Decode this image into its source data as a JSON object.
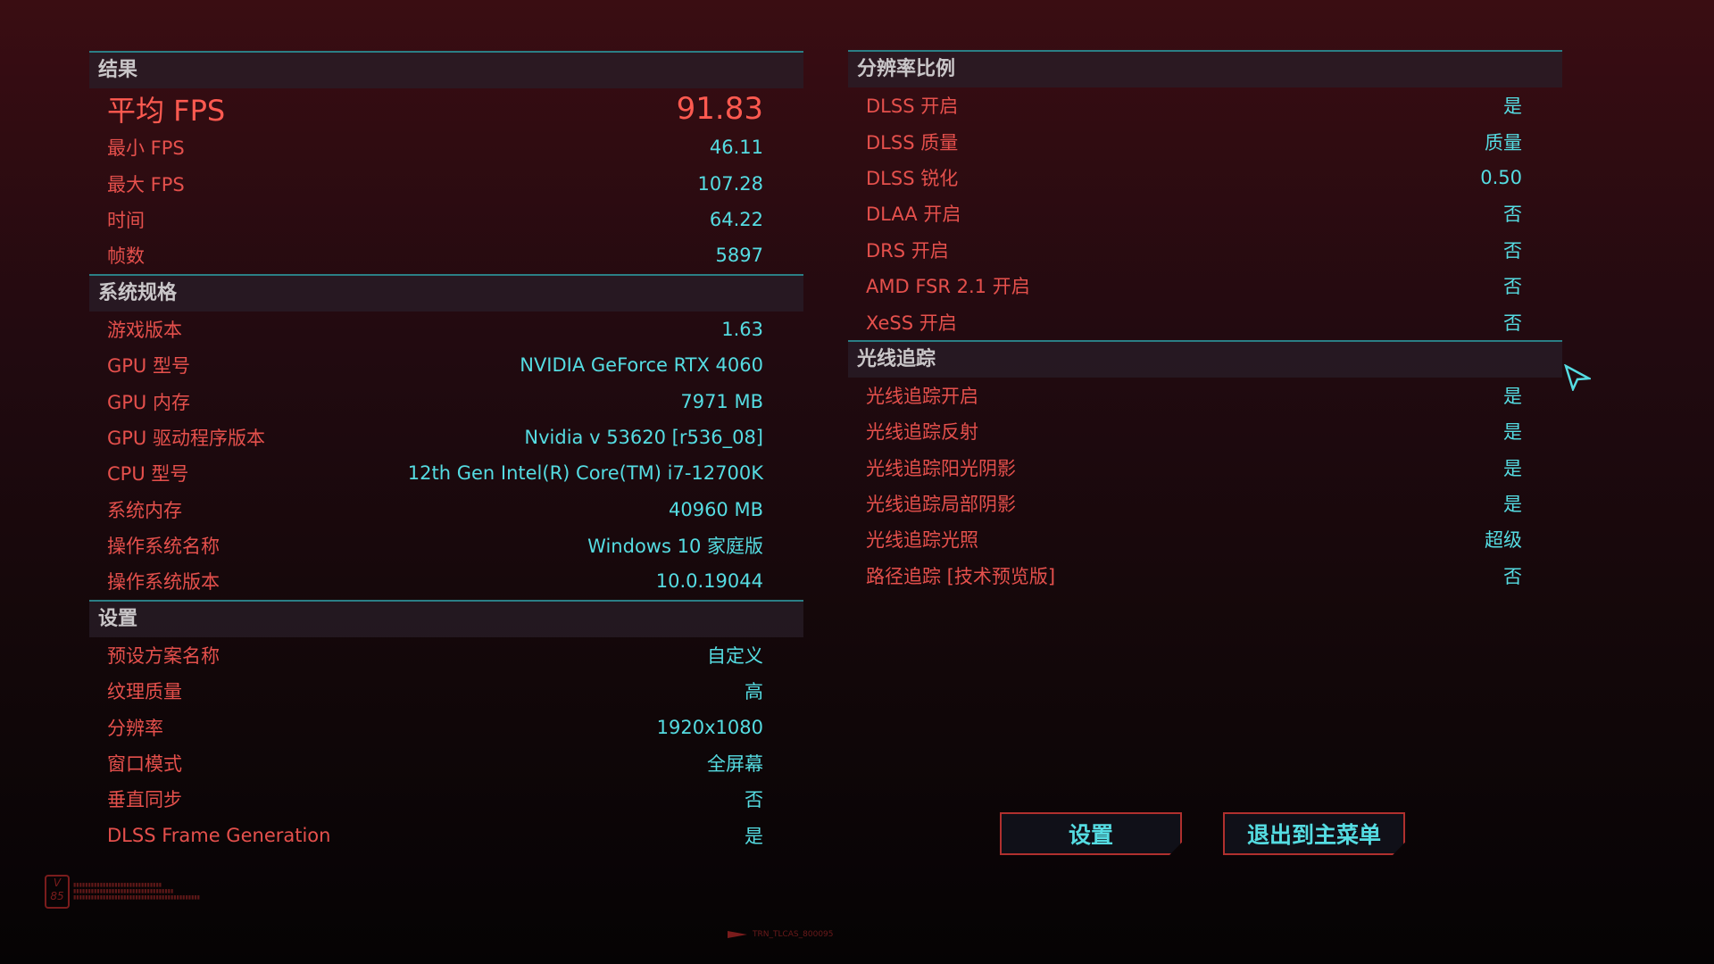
{
  "left_sections": [
    {
      "title": "结果",
      "rows": [
        {
          "label": "平均 FPS",
          "value": "91.83",
          "big": true
        },
        {
          "label": "最小 FPS",
          "value": "46.11"
        },
        {
          "label": "最大 FPS",
          "value": "107.28"
        },
        {
          "label": "时间",
          "value": "64.22"
        },
        {
          "label": "帧数",
          "value": "5897"
        }
      ]
    },
    {
      "title": "系统规格",
      "rows": [
        {
          "label": "游戏版本",
          "value": "1.63"
        },
        {
          "label": "GPU 型号",
          "value": "NVIDIA GeForce RTX 4060"
        },
        {
          "label": "GPU 内存",
          "value": "7971 MB"
        },
        {
          "label": "GPU 驱动程序版本",
          "value": "Nvidia v 53620 [r536_08]"
        },
        {
          "label": "CPU 型号",
          "value": "12th Gen Intel(R) Core(TM) i7-12700K"
        },
        {
          "label": "系统内存",
          "value": "40960 MB"
        },
        {
          "label": "操作系统名称",
          "value": "Windows 10 家庭版"
        },
        {
          "label": "操作系统版本",
          "value": "10.0.19044"
        }
      ]
    },
    {
      "title": "设置",
      "rows": [
        {
          "label": "预设方案名称",
          "value": "自定义"
        },
        {
          "label": "纹理质量",
          "value": "高"
        },
        {
          "label": "分辨率",
          "value": "1920x1080"
        },
        {
          "label": "窗口模式",
          "value": "全屏幕"
        },
        {
          "label": "垂直同步",
          "value": "否"
        },
        {
          "label": "DLSS Frame Generation",
          "value": "是"
        }
      ]
    }
  ],
  "right_sections": [
    {
      "title": "分辨率比例",
      "rows": [
        {
          "label": "DLSS 开启",
          "value": "是"
        },
        {
          "label": "DLSS 质量",
          "value": "质量"
        },
        {
          "label": "DLSS 锐化",
          "value": "0.50"
        },
        {
          "label": "DLAA 开启",
          "value": "否"
        },
        {
          "label": "DRS 开启",
          "value": "否"
        },
        {
          "label": "AMD FSR 2.1 开启",
          "value": "否"
        },
        {
          "label": "XeSS 开启",
          "value": "否"
        }
      ]
    },
    {
      "title": "光线追踪",
      "rows": [
        {
          "label": "光线追踪开启",
          "value": "是"
        },
        {
          "label": "光线追踪反射",
          "value": "是"
        },
        {
          "label": "光线追踪阳光阴影",
          "value": "是"
        },
        {
          "label": "光线追踪局部阴影",
          "value": "是"
        },
        {
          "label": "光线追踪光照",
          "value": "超级"
        },
        {
          "label": "路径追踪 [技术预览版]",
          "value": "否"
        }
      ]
    }
  ],
  "buttons": {
    "settings": "设置",
    "exit": "退出到主菜单"
  },
  "footer": {
    "badge": "V 85",
    "code": "TRN_TLCAS_800095"
  },
  "colors": {
    "label": "#e5504c",
    "value": "#55dce2",
    "accent_line": "#2b7f86",
    "button_border": "#b0302e"
  }
}
